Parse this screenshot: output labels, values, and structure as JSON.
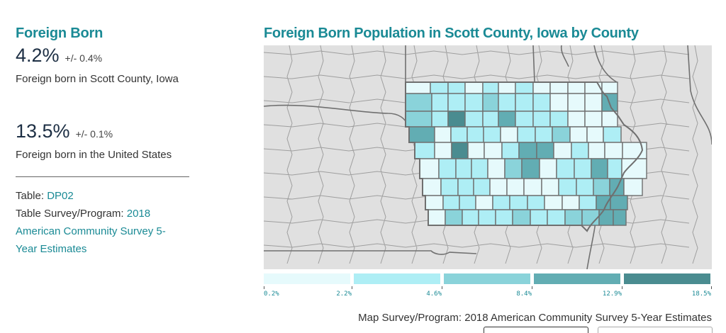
{
  "left": {
    "title": "Foreign Born",
    "county_stat": {
      "value": "4.2%",
      "moe": "+/- 0.4%",
      "desc": "Foreign born in Scott County, Iowa"
    },
    "us_stat": {
      "value": "13.5%",
      "moe": "+/- 0.1%",
      "desc": "Foreign born in the United States"
    },
    "table_label": "Table: ",
    "table_link": "DP02",
    "survey_label": "Table Survey/Program: ",
    "survey_link": "2018 American Community Survey 5-Year Estimates"
  },
  "map": {
    "title": "Foreign Born Population in Scott County, Iowa by County",
    "source": "Map Survey/Program: 2018 American Community Survey 5-Year Estimates",
    "colors": {
      "background": "#e0e0e0",
      "county_border": "#9e9e9e",
      "state_border": "#707070",
      "bin_1": "#e6fafc",
      "bin_2": "#aeeef5",
      "bin_3": "#8ad3da",
      "bin_4": "#62adb3",
      "bin_5": "#4a8c90"
    },
    "legend": {
      "breaks": [
        "0.2%",
        "2.2%",
        "4.6%",
        "8.4%",
        "12.9%",
        "18.5%"
      ]
    }
  }
}
